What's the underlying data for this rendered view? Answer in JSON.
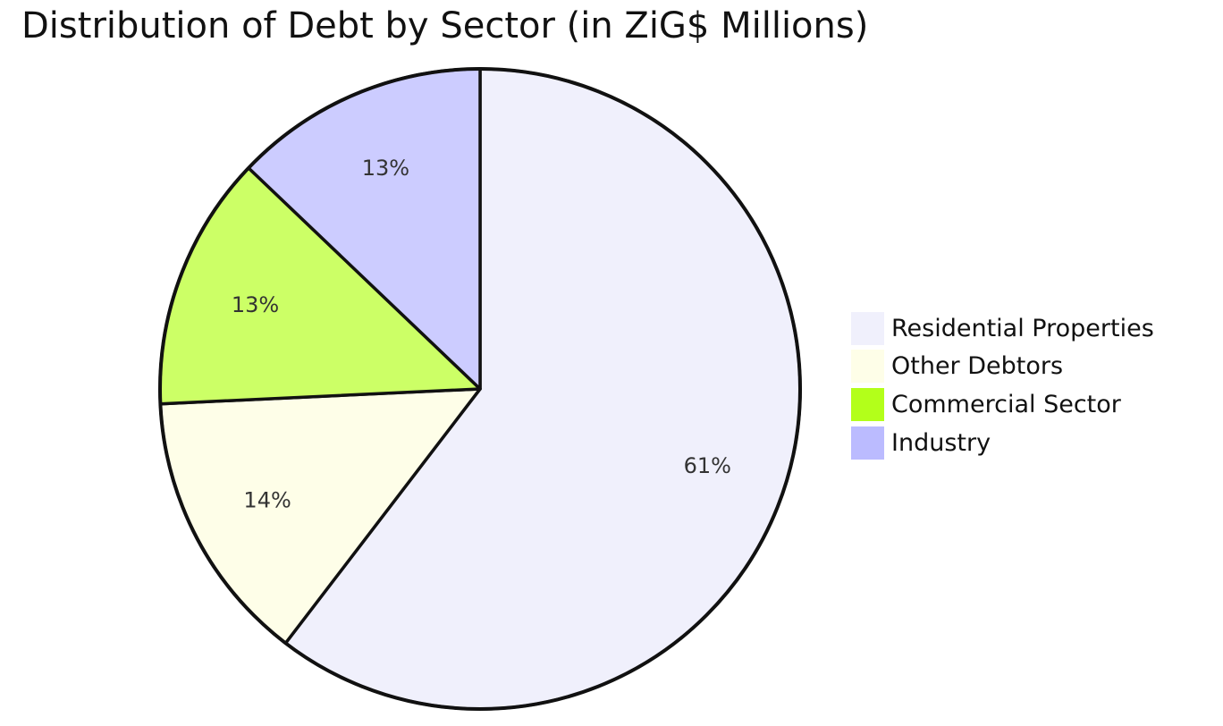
{
  "chart_data": {
    "type": "pie",
    "title": "Distribution of Debt by Sector (in ZiG$ Millions)",
    "slices": [
      {
        "name": "Residential Properties",
        "value": 61,
        "label": "61%",
        "color": "#f0f0fc"
      },
      {
        "name": "Other Debtors",
        "value": 14,
        "label": "14%",
        "color": "#fefee8"
      },
      {
        "name": "Commercial Sector",
        "value": 13,
        "label": "13%",
        "color": "#ccff66"
      },
      {
        "name": "Industry",
        "value": 13,
        "label": "13%",
        "color": "#ccccff"
      }
    ],
    "legend": {
      "position": "right",
      "entries": [
        {
          "label": "Residential Properties",
          "color": "#f0f0fc"
        },
        {
          "label": "Other Debtors",
          "color": "#fefee8"
        },
        {
          "label": "Commercial Sector",
          "color": "#b3ff1a"
        },
        {
          "label": "Industry",
          "color": "#bbbbff"
        }
      ]
    },
    "stroke_color": "#111111"
  }
}
